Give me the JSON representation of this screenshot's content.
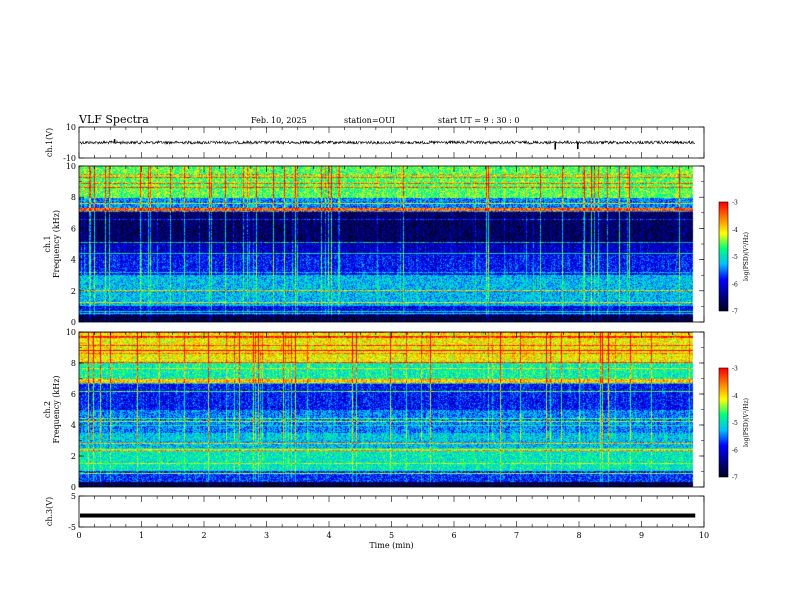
{
  "header": {
    "title": "VLF Spectra",
    "date": "Feb. 10, 2025",
    "station": "station=OUI",
    "start_ut": "start  UT =   9 : 30 : 0"
  },
  "colors": {
    "colormap": [
      "#000020",
      "#00008b",
      "#0000ff",
      "#00bfff",
      "#00ff7f",
      "#ffff00",
      "#ff7f00",
      "#ff0000",
      "#ffffff"
    ]
  },
  "chart_data": [
    {
      "type": "line",
      "panel": "ch1-waveform",
      "ylabel": "ch.1(V)",
      "ylim": [
        -10,
        10
      ],
      "yticks": [
        "10",
        "-10"
      ],
      "xlim": [
        0,
        10
      ],
      "baseline": 0,
      "spikes": [
        {
          "x": 0.57,
          "y": 2.2
        },
        {
          "x": 7.62,
          "y": -4.5
        },
        {
          "x": 7.98,
          "y": -4.2
        }
      ]
    },
    {
      "type": "heatmap",
      "panel": "ch1-spectrogram",
      "ylabel": "ch.1\nFrequency (kHz)",
      "ylim": [
        0,
        10
      ],
      "yticks": [
        "0",
        "2",
        "4",
        "6",
        "8",
        "10"
      ],
      "xlim": [
        0,
        10
      ],
      "data_xmax": 9.83,
      "colorbar": {
        "label": "log(PSD)(V²/Hz)",
        "ticks": [
          "-3",
          "-4",
          "-5",
          "-6",
          "-7"
        ],
        "range": [
          -7,
          -3
        ]
      },
      "bands": [
        {
          "f": [
            8.0,
            10.0
          ],
          "level": -4.7
        },
        {
          "f": [
            7.3,
            8.0
          ],
          "level": -5.6
        },
        {
          "f": [
            7.1,
            7.3
          ],
          "level": -3.6
        },
        {
          "f": [
            5.0,
            7.1
          ],
          "level": -6.8
        },
        {
          "f": [
            4.3,
            5.0
          ],
          "level": -6.3
        },
        {
          "f": [
            3.0,
            4.3
          ],
          "level": -6.0
        },
        {
          "f": [
            1.0,
            3.0
          ],
          "level": -5.3
        },
        {
          "f": [
            0.4,
            1.0
          ],
          "level": -6.0
        },
        {
          "f": [
            0.0,
            0.4
          ],
          "level": -6.9
        }
      ]
    },
    {
      "type": "heatmap",
      "panel": "ch2-spectrogram",
      "ylabel": "ch.2\nFrequency (kHz)",
      "ylim": [
        0,
        10
      ],
      "yticks": [
        "0",
        "2",
        "4",
        "6",
        "8",
        "10"
      ],
      "xlim": [
        0,
        10
      ],
      "data_xmax": 9.83,
      "colorbar": {
        "label": "log(PSD)(V²/Hz)",
        "ticks": [
          "-3",
          "-4",
          "-5",
          "-6",
          "-7"
        ],
        "range": [
          -7,
          -3
        ]
      },
      "bands": [
        {
          "f": [
            8.0,
            10.0
          ],
          "level": -4.2
        },
        {
          "f": [
            7.0,
            8.0
          ],
          "level": -5.0
        },
        {
          "f": [
            6.7,
            7.0
          ],
          "level": -4.0
        },
        {
          "f": [
            5.0,
            6.7
          ],
          "level": -6.0
        },
        {
          "f": [
            3.5,
            5.0
          ],
          "level": -5.6
        },
        {
          "f": [
            2.5,
            3.5
          ],
          "level": -5.3
        },
        {
          "f": [
            1.0,
            2.5
          ],
          "level": -5.0
        },
        {
          "f": [
            0.3,
            1.0
          ],
          "level": -5.8
        },
        {
          "f": [
            0.0,
            0.3
          ],
          "level": -6.9
        }
      ]
    },
    {
      "type": "line",
      "panel": "ch3-waveform",
      "ylabel": "ch.3(V)",
      "ylim": [
        -5,
        5
      ],
      "yticks": [
        "5",
        "-5"
      ],
      "xlim": [
        0,
        10
      ],
      "baseline": -1.3,
      "xlabel": "Time  (min)",
      "xticks": [
        "0",
        "1",
        "2",
        "3",
        "4",
        "5",
        "6",
        "7",
        "8",
        "9",
        "10"
      ]
    }
  ]
}
